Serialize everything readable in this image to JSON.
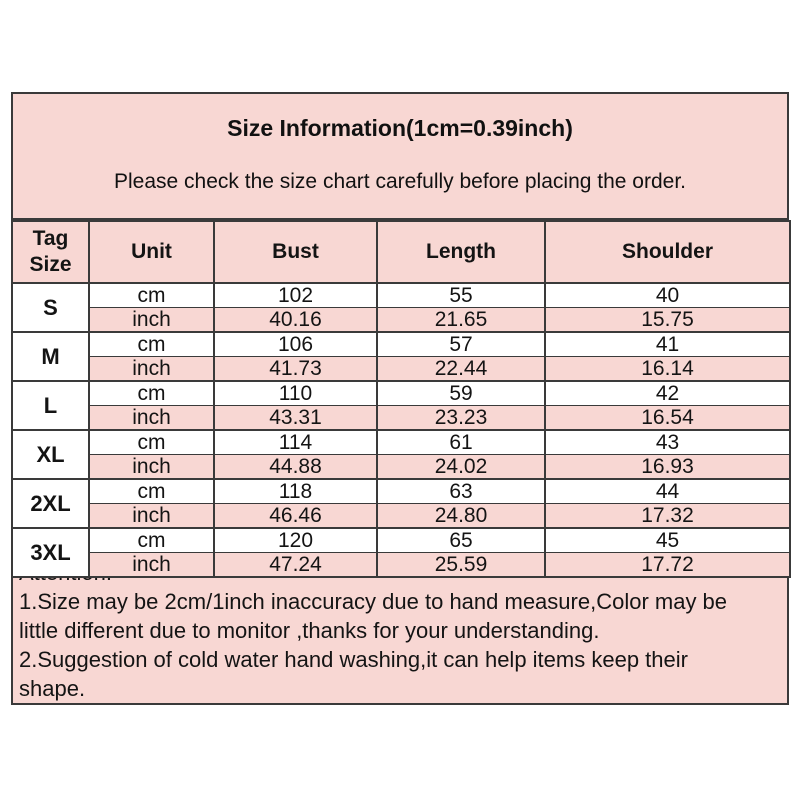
{
  "colors": {
    "pink_fill": "#f8d7d3",
    "border": "#3a3a3a",
    "text": "#141414",
    "row_alt": "#ffffff"
  },
  "title_box": {
    "title": "Size Information(1cm=0.39inch)",
    "subtitle": "Please check the size chart carefully before placing the order."
  },
  "table": {
    "headers": {
      "tag": "Tag Size",
      "unit": "Unit",
      "bust": "Bust",
      "length": "Length",
      "shoulder": "Shoulder"
    },
    "unit_labels": {
      "cm": "cm",
      "inch": "inch"
    },
    "rows": [
      {
        "tag": "S",
        "cm": {
          "bust": "102",
          "length": "55",
          "shoulder": "40"
        },
        "inch": {
          "bust": "40.16",
          "length": "21.65",
          "shoulder": "15.75"
        }
      },
      {
        "tag": "M",
        "cm": {
          "bust": "106",
          "length": "57",
          "shoulder": "41"
        },
        "inch": {
          "bust": "41.73",
          "length": "22.44",
          "shoulder": "16.14"
        }
      },
      {
        "tag": "L",
        "cm": {
          "bust": "110",
          "length": "59",
          "shoulder": "42"
        },
        "inch": {
          "bust": "43.31",
          "length": "23.23",
          "shoulder": "16.54"
        }
      },
      {
        "tag": "XL",
        "cm": {
          "bust": "114",
          "length": "61",
          "shoulder": "43"
        },
        "inch": {
          "bust": "44.88",
          "length": "24.02",
          "shoulder": "16.93"
        }
      },
      {
        "tag": "2XL",
        "cm": {
          "bust": "118",
          "length": "63",
          "shoulder": "44"
        },
        "inch": {
          "bust": "46.46",
          "length": "24.80",
          "shoulder": "17.32"
        }
      },
      {
        "tag": "3XL",
        "cm": {
          "bust": "120",
          "length": "65",
          "shoulder": "45"
        },
        "inch": {
          "bust": "47.24",
          "length": "25.59",
          "shoulder": "17.72"
        }
      }
    ]
  },
  "attention": {
    "heading": "Attention:",
    "lines": [
      "1.Size may be 2cm/1inch inaccuracy due to hand measure,Color may be",
      "little different due to monitor ,thanks for your understanding.",
      "2.Suggestion of cold water hand washing,it can help items keep their",
      "shape."
    ]
  }
}
